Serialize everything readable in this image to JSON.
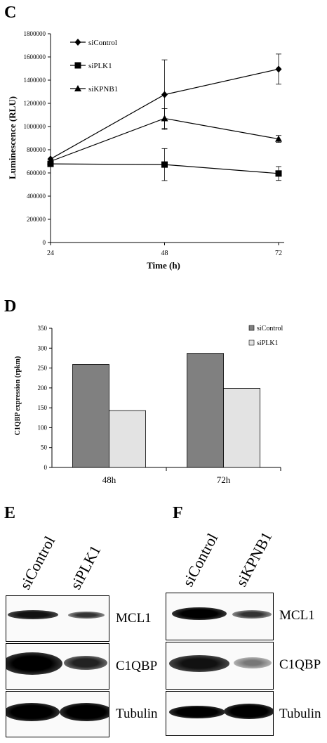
{
  "panels": {
    "c": "C",
    "d": "D",
    "e": "E",
    "f": "F"
  },
  "chart_data": [
    {
      "type": "line",
      "panel": "C",
      "xlabel": "Time (h)",
      "ylabel": "Luminescence (RLU)",
      "x": [
        24,
        48,
        72
      ],
      "x_ticks": [
        "24",
        "48",
        "72"
      ],
      "ylim": [
        0,
        1800000
      ],
      "y_ticks": [
        "0",
        "200000",
        "400000",
        "600000",
        "800000",
        "1000000",
        "1200000",
        "1400000",
        "1600000",
        "1800000"
      ],
      "legend_position": "top-left",
      "series": [
        {
          "name": "siControl",
          "marker": "diamond",
          "values": [
            720000,
            1275000,
            1495000
          ],
          "errors": [
            null,
            300000,
            130000
          ]
        },
        {
          "name": "siPLK1",
          "marker": "square",
          "values": [
            678000,
            672000,
            595000
          ],
          "errors": [
            null,
            138000,
            60000
          ]
        },
        {
          "name": "siKPNB1",
          "marker": "triangle",
          "values": [
            700000,
            1070000,
            893000
          ],
          "errors": [
            null,
            85000,
            30000
          ]
        }
      ]
    },
    {
      "type": "bar",
      "panel": "D",
      "ylabel": "C1QBP expression (rpkm)",
      "categories": [
        "48h",
        "72h"
      ],
      "ylim": [
        0,
        350
      ],
      "y_ticks": [
        "0",
        "50",
        "100",
        "150",
        "200",
        "250",
        "300",
        "350"
      ],
      "legend_position": "top-right",
      "series": [
        {
          "name": "siControl",
          "color": "#808080",
          "values": [
            259,
            287
          ]
        },
        {
          "name": "siPLK1",
          "color": "#e3e3e3",
          "values": [
            143,
            199
          ]
        }
      ]
    }
  ],
  "blots": {
    "e": {
      "lanes": [
        "siControl",
        "siPLK1"
      ],
      "rows": [
        "MCL1",
        "C1QBP",
        "Tubulin"
      ]
    },
    "f": {
      "lanes": [
        "siControl",
        "siKPNB1"
      ],
      "rows": [
        "MCL1",
        "C1QBP",
        "Tubulin"
      ]
    }
  }
}
